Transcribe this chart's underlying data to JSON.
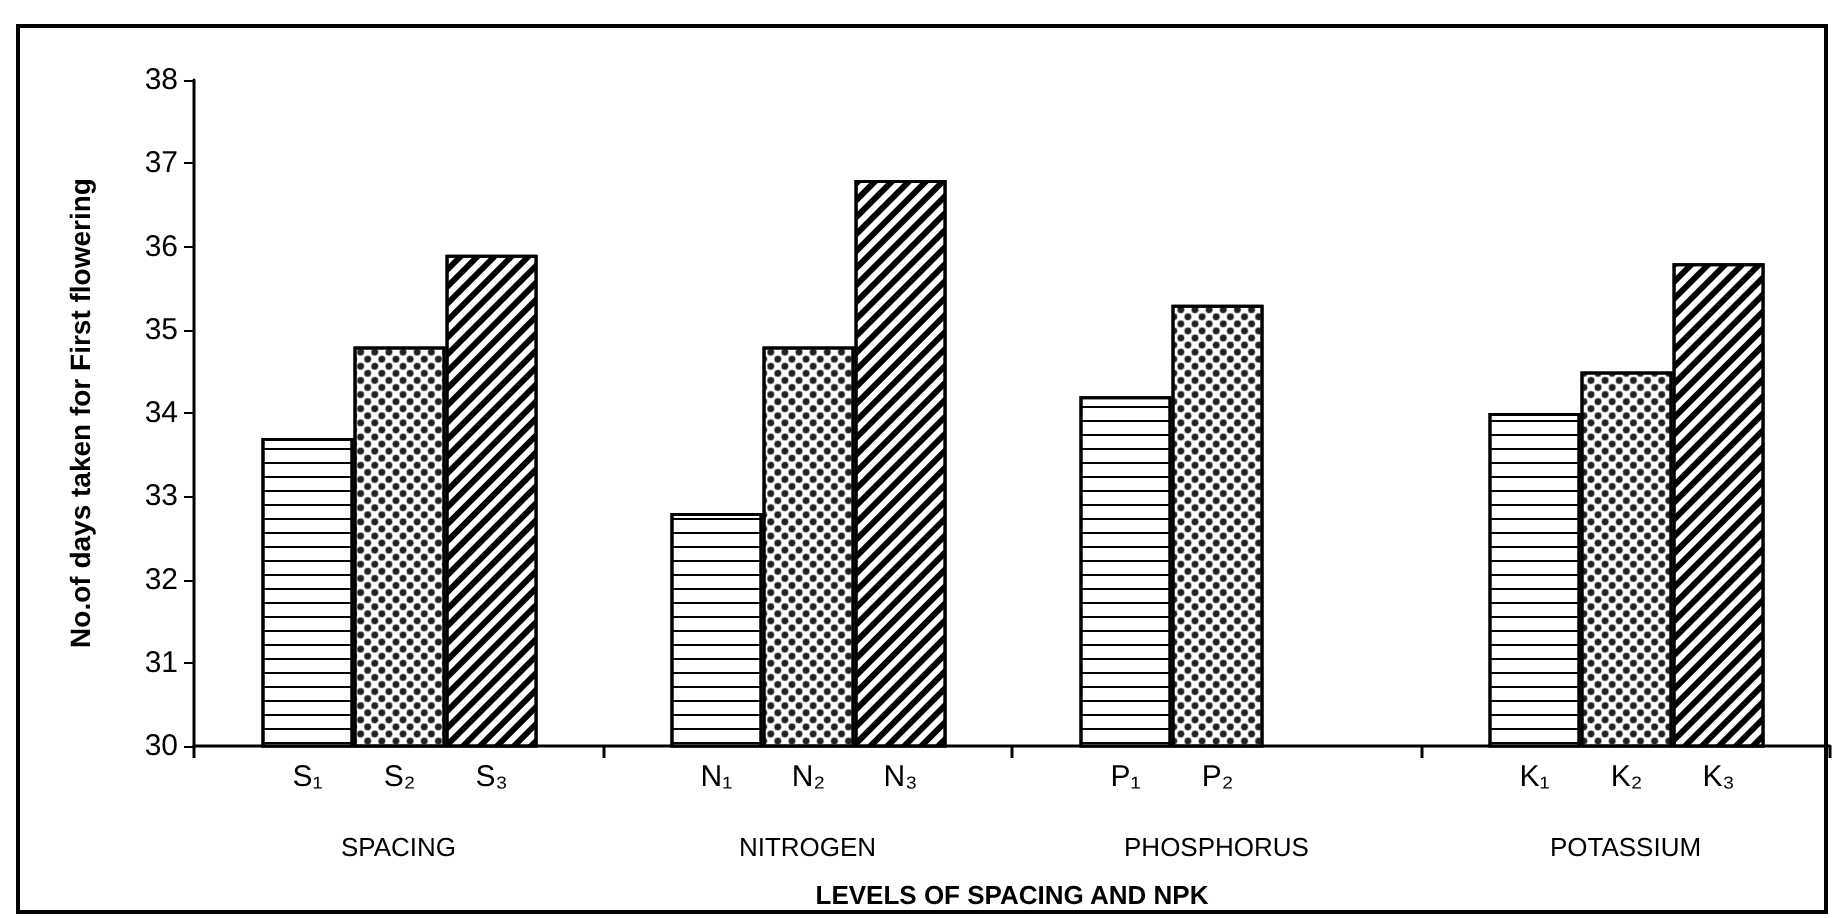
{
  "chart_data": {
    "type": "bar",
    "ylabel": "No.of days taken for First flowering",
    "xlabel": "LEVELS OF SPACING AND NPK",
    "categories": [
      "S₁",
      "S₂",
      "S₃",
      "N₁",
      "N₂",
      "N₃",
      "P₁",
      "P₂",
      "K₁",
      "K₂",
      "K₃"
    ],
    "series": [
      {
        "x": [
          "S₁",
          "S₂",
          "S₃"
        ],
        "values": [
          33.7,
          34.8,
          35.9
        ]
      },
      {
        "x": [
          "N₁",
          "N₂",
          "N₃"
        ],
        "values": [
          32.8,
          34.8,
          36.8
        ]
      },
      {
        "x": [
          "P₁",
          "P₂"
        ],
        "values": [
          34.2,
          35.3
        ]
      },
      {
        "x": [
          "K₁",
          "K₂",
          "K₃"
        ],
        "values": [
          34.0,
          34.5,
          35.8
        ]
      }
    ],
    "annotations": [
      "SPACING",
      "NITROGEN",
      "PHOSPHORUS",
      "POTASSIUM"
    ],
    "ylim": [
      30,
      38
    ],
    "yticks": [
      30,
      31,
      32,
      33,
      34,
      35,
      36,
      37,
      38
    ],
    "grid": false
  }
}
